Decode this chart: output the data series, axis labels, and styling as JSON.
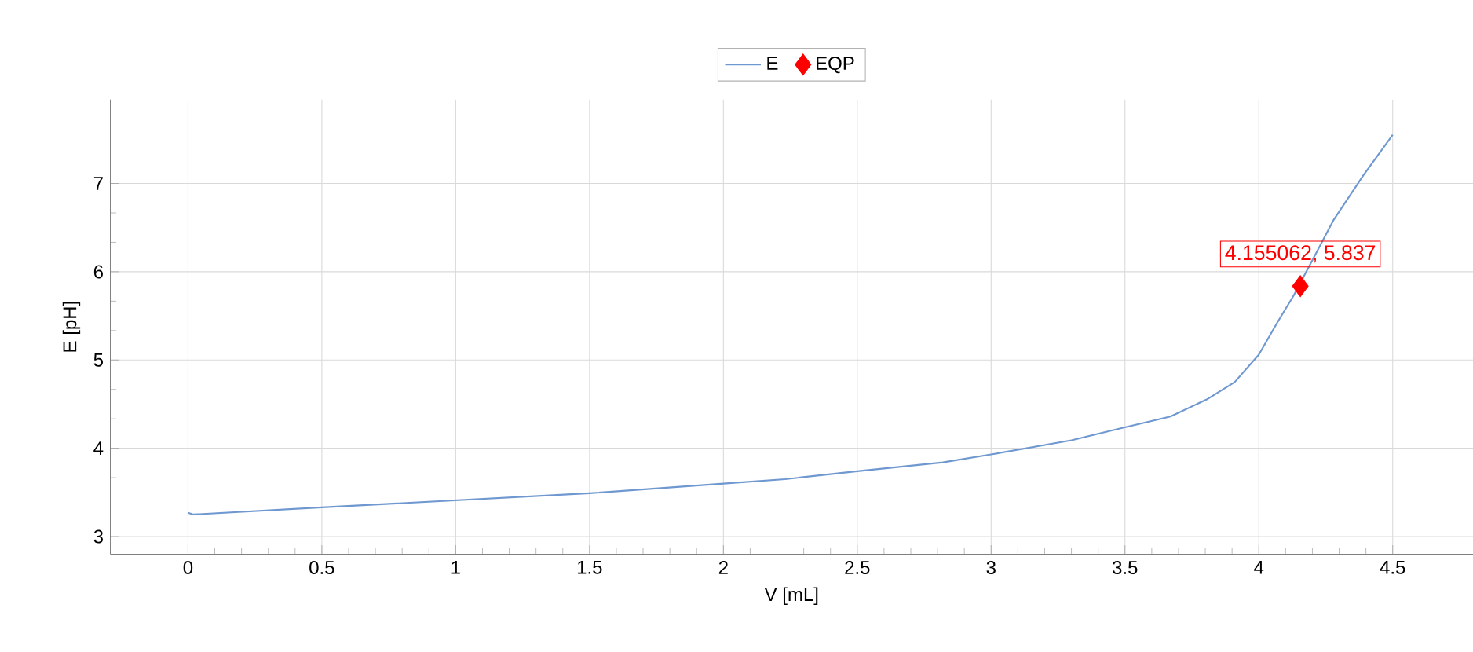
{
  "chart_data": {
    "type": "line",
    "xlabel": "V [mL]",
    "ylabel": "E [pH]",
    "xlim": [
      -0.29,
      4.8
    ],
    "ylim": [
      2.8,
      7.95
    ],
    "xticks": [
      0,
      0.5,
      1,
      1.5,
      2,
      2.5,
      3,
      3.5,
      4,
      4.5
    ],
    "yticks": [
      3,
      4,
      5,
      6,
      7
    ],
    "grid": true,
    "legend": "top",
    "series": [
      {
        "name": "E",
        "color": "#6f98d0",
        "marker": "none",
        "x": [
          0,
          0.02,
          0.5,
          1,
          1.5,
          2,
          2.23,
          2.5,
          2.82,
          3.0,
          3.3,
          3.49,
          3.67,
          3.81,
          3.91,
          4.0,
          4.07,
          4.13,
          4.2,
          4.28,
          4.39,
          4.5
        ],
        "values": [
          3.27,
          3.25,
          3.33,
          3.41,
          3.49,
          3.6,
          3.65,
          3.74,
          3.84,
          3.93,
          4.09,
          4.23,
          4.36,
          4.56,
          4.75,
          5.06,
          5.43,
          5.73,
          6.13,
          6.59,
          7.09,
          7.55
        ]
      },
      {
        "name": "EQP",
        "type": "scatter",
        "color": "#ff0000",
        "marker": "diamond",
        "x": [
          4.155062
        ],
        "values": [
          5.837
        ]
      }
    ],
    "annotations": [
      {
        "text": "4.155062, 5.837",
        "x": 4.155062,
        "y": 5.837
      }
    ]
  }
}
